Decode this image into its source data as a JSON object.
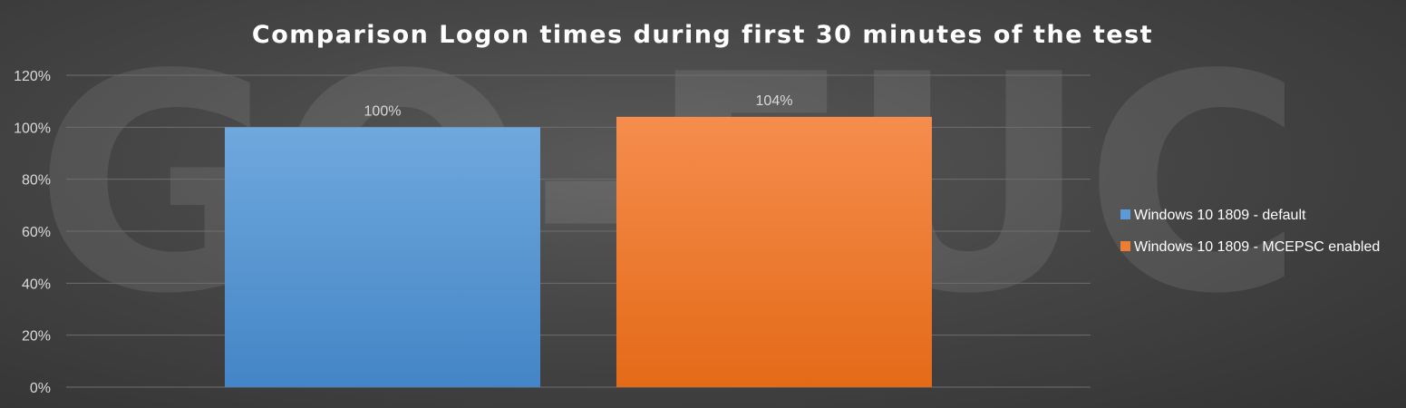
{
  "watermark_text": "GO-EUC",
  "chart_data": {
    "type": "bar",
    "title": "Comparison Logon times during first 30 minutes of the test",
    "xlabel": "",
    "ylabel": "",
    "ylim": [
      0,
      120
    ],
    "yticks": [
      "0%",
      "20%",
      "40%",
      "60%",
      "80%",
      "100%",
      "120%"
    ],
    "grid": true,
    "legend_position": "right",
    "series": [
      {
        "name": "Windows 10 1809 - default",
        "values": [
          100
        ],
        "label": "100%",
        "color": "#5b9bd5"
      },
      {
        "name": "Windows 10 1809 - MCEPSC enabled",
        "values": [
          104
        ],
        "label": "104%",
        "color": "#ed7d31"
      }
    ]
  }
}
